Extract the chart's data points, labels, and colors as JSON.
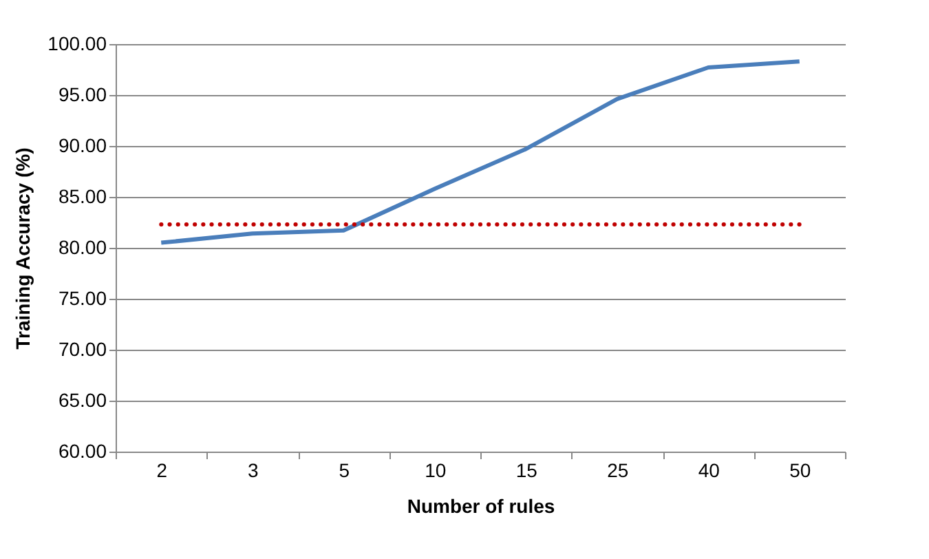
{
  "chart_data": {
    "type": "line",
    "xlabel": "Number of rules",
    "ylabel": "Training Accuracy (%)",
    "categories": [
      "2",
      "3",
      "5",
      "10",
      "15",
      "25",
      "40",
      "50"
    ],
    "series": [
      {
        "color": "#4a7ebb",
        "values": [
          80.5,
          81.4,
          81.7,
          85.8,
          89.7,
          94.6,
          97.7,
          98.3
        ]
      }
    ],
    "ylim": [
      60,
      100
    ],
    "yticks": [
      {
        "value": 60,
        "label": "60.00"
      },
      {
        "value": 65,
        "label": "65.00"
      },
      {
        "value": 70,
        "label": "70.00"
      },
      {
        "value": 75,
        "label": "75.00"
      },
      {
        "value": 80,
        "label": "80.00"
      },
      {
        "value": 85,
        "label": "85.00"
      },
      {
        "value": 90,
        "label": "90.00"
      },
      {
        "value": 95,
        "label": "95.00"
      },
      {
        "value": 100,
        "label": "100.00"
      }
    ],
    "ref_lines": [
      {
        "axis": "y",
        "value": 82.3,
        "color": "#c00000",
        "line_style": "dotted"
      }
    ],
    "grid": "y",
    "line_style": "solid",
    "marker": "none"
  }
}
